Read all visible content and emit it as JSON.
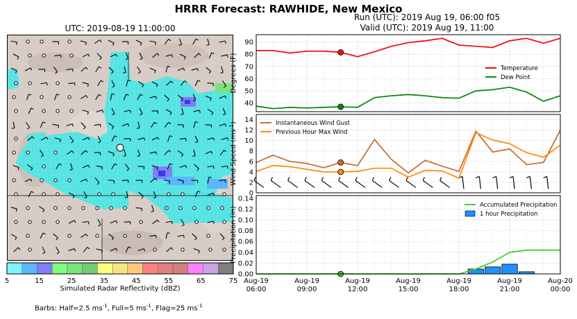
{
  "title": "HRRR Forecast: RAWHIDE, New Mexico",
  "run_line": "Run (UTC): 2019 Aug 19, 06:00 f05",
  "valid_line": "Valid (UTC): 2019 Aug 19, 11:00",
  "map": {
    "title": "UTC: 2019-08-19 11:00:00",
    "colorbar_label": "Simulated Radar Reflectivity (dBZ)",
    "colorbar_ticks": [
      "5",
      "15",
      "25",
      "35",
      "45",
      "55",
      "65",
      "75"
    ],
    "colorbar_colors": [
      "#7ff2fd",
      "#5cb6fd",
      "#7f7ff6",
      "#7ffd7f",
      "#7ce27c",
      "#76c976",
      "#ffff80",
      "#f6e680",
      "#ffc97f",
      "#fe7f7f",
      "#e47f7f",
      "#d27f7f",
      "#fc80fd",
      "#c9a3e3",
      "#7f7f7f"
    ],
    "barbs_note": "Barbs: Half=2.5 ms",
    "barbs_sup1": "-1",
    "barbs_mid1": ", Full=5 ms",
    "barbs_sup2": "-1",
    "barbs_mid2": ", Flag=25 ms",
    "barbs_sup3": "-1"
  },
  "x_ticks": [
    {
      "line1": "Aug-19",
      "line2": "06:00",
      "hour": 6
    },
    {
      "line1": "Aug-19",
      "line2": "09:00",
      "hour": 9
    },
    {
      "line1": "Aug-19",
      "line2": "12:00",
      "hour": 12
    },
    {
      "line1": "Aug-19",
      "line2": "15:00",
      "hour": 15
    },
    {
      "line1": "Aug-19",
      "line2": "18:00",
      "hour": 18
    },
    {
      "line1": "Aug-19",
      "line2": "21:00",
      "hour": 21
    },
    {
      "line1": "Aug-20",
      "line2": "00:00",
      "hour": 24
    }
  ],
  "chart_data": [
    {
      "type": "line",
      "ylabel": "Degrees (F)",
      "xlim": [
        6,
        24
      ],
      "ylim": [
        33,
        96
      ],
      "yticks": [
        40,
        50,
        60,
        70,
        80,
        90
      ],
      "grid": true,
      "legend": "right",
      "x": [
        6,
        7,
        8,
        9,
        10,
        11,
        12,
        13,
        14,
        15,
        16,
        17,
        18,
        19,
        20,
        21,
        22,
        23,
        24
      ],
      "series": [
        {
          "name": "Temperature",
          "color": "#ee1111",
          "values": [
            83,
            83,
            81,
            82.5,
            82.5,
            81.5,
            78,
            82,
            86.5,
            89.5,
            91,
            93,
            87.5,
            86.5,
            85.5,
            91,
            93,
            89,
            93
          ]
        },
        {
          "name": "Dew Point",
          "color": "#118811",
          "values": [
            37.5,
            35.5,
            36.5,
            36,
            36.5,
            37,
            36.5,
            44.5,
            46,
            47,
            46,
            44.5,
            44,
            50,
            51,
            53,
            49,
            41.5,
            46
          ]
        }
      ],
      "marker_x": 11
    },
    {
      "type": "line",
      "ylabel": "Wind Speed (ms-1)",
      "xlim": [
        6,
        24
      ],
      "ylim": [
        0,
        15
      ],
      "yticks": [
        0,
        2,
        4,
        6,
        8,
        10,
        12,
        14
      ],
      "grid": true,
      "legend": "top-left",
      "x": [
        6,
        7,
        8,
        9,
        10,
        11,
        12,
        13,
        14,
        15,
        16,
        17,
        18,
        19,
        20,
        21,
        22,
        23,
        24
      ],
      "series": [
        {
          "name": "Instantaneous Wind Gust",
          "color": "#c87137",
          "values": [
            5.8,
            7.2,
            6.0,
            5.6,
            4.8,
            5.8,
            5.2,
            10.2,
            6.4,
            3.8,
            6.2,
            5.1,
            4.1,
            11.8,
            7.8,
            8.4,
            5.4,
            5.8,
            12.0
          ]
        },
        {
          "name": "Previous Hour Max Wind",
          "color": "#ff8c0c",
          "values": [
            4.1,
            5.2,
            5.0,
            4.5,
            4.0,
            4.0,
            4.1,
            4.7,
            4.7,
            3.0,
            4.3,
            4.2,
            2.8,
            11.5,
            10.1,
            9.4,
            7.7,
            6.8,
            9.1
          ]
        }
      ],
      "marker_x": 11
    },
    {
      "type": "line",
      "ylabel": "Precipitation (in)",
      "xlim": [
        6,
        24
      ],
      "ylim": [
        0,
        0.145
      ],
      "yticks": [
        0.0,
        0.02,
        0.04,
        0.06,
        0.08,
        0.1,
        0.12,
        0.14
      ],
      "grid": true,
      "legend": "top-right",
      "x": [
        6,
        7,
        8,
        9,
        10,
        11,
        12,
        13,
        14,
        15,
        16,
        17,
        18,
        19,
        20,
        21,
        22,
        23,
        24
      ],
      "series": [
        {
          "name": "Accumulated Precipitation",
          "color": "#44cc33",
          "values": [
            0,
            0,
            0,
            0,
            0,
            0,
            0,
            0,
            0,
            0,
            0,
            0,
            0,
            0.009,
            0.022,
            0.04,
            0.044,
            0.044,
            0.044
          ]
        }
      ],
      "bars": {
        "name": "1 hour Precipitation",
        "color": "#1e90ff",
        "x": [
          19,
          20,
          21,
          22
        ],
        "values": [
          0.009,
          0.013,
          0.018,
          0.004
        ]
      },
      "marker_x": 11
    }
  ]
}
